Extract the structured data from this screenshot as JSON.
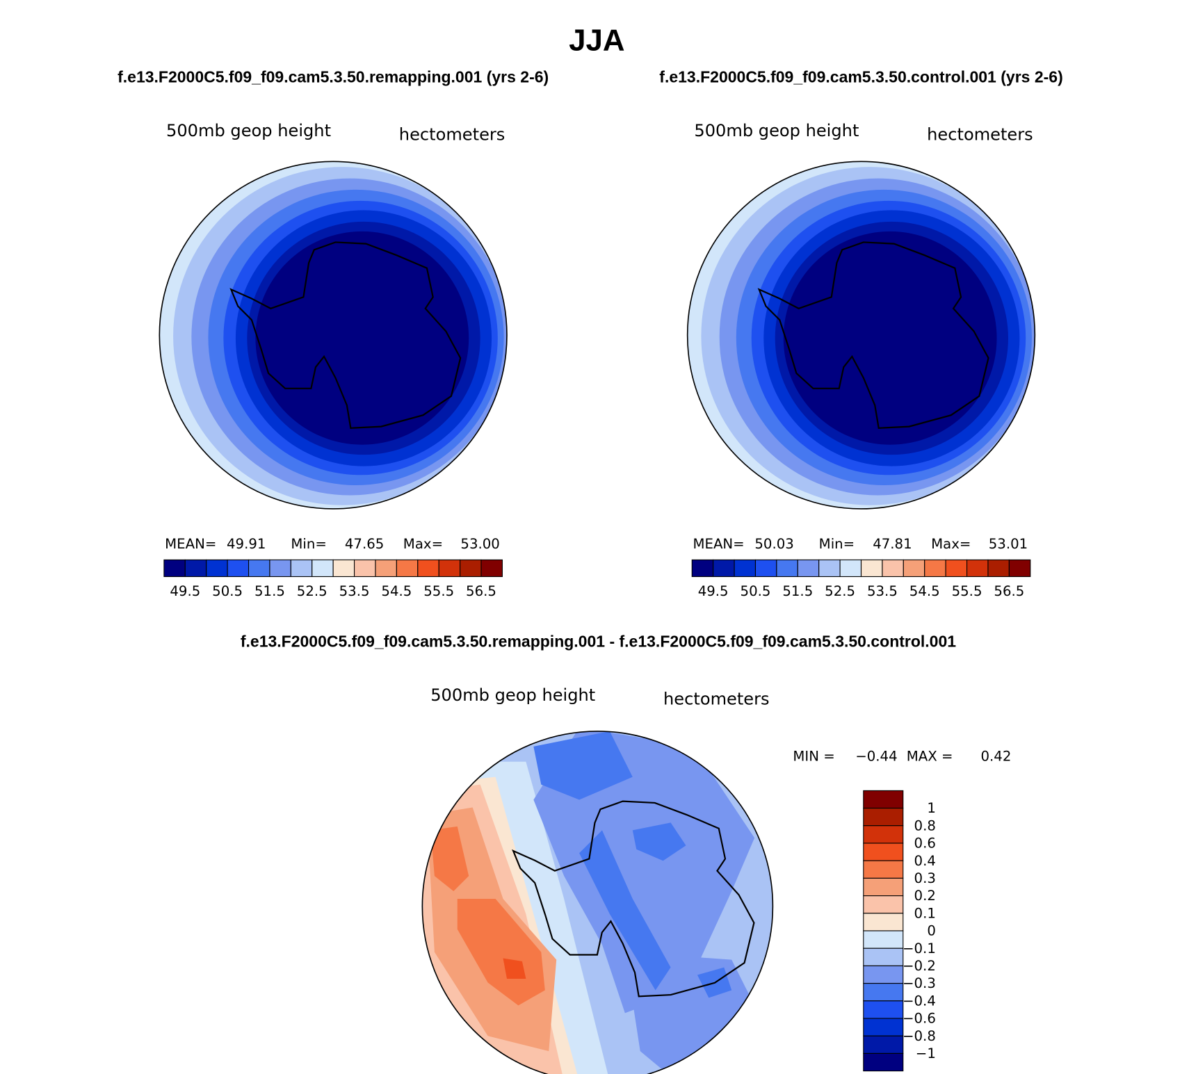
{
  "title": "JJA",
  "panels": [
    {
      "subtitle": "f.e13.F2000C5.f09_f09.cam5.3.50.remapping.001 (yrs 2-6)",
      "variable": "500mb geop height",
      "units": "hectometers",
      "stats": [
        "MEAN=",
        "49.91",
        "Min=",
        "47.65",
        "Max=",
        "53.00"
      ],
      "colorbar": {
        "labels": [
          "49.5",
          "50.5",
          "51.5",
          "52.5",
          "53.5",
          "54.5",
          "55.5",
          "56.5"
        ],
        "colors": [
          "#000080",
          "#0019a8",
          "#0032d2",
          "#1e50f0",
          "#4678f0",
          "#7896f0",
          "#aac3f5",
          "#d2e6fa",
          "#fae6d2",
          "#fac3aa",
          "#f5a078",
          "#f57846",
          "#f0501e",
          "#d2320a",
          "#aa1e00",
          "#800000"
        ]
      }
    },
    {
      "subtitle": "f.e13.F2000C5.f09_f09.cam5.3.50.control.001 (yrs 2-6)",
      "variable": "500mb geop height",
      "units": "hectometers",
      "stats": [
        "MEAN=",
        "50.03",
        "Min=",
        "47.81",
        "Max=",
        "53.01"
      ],
      "colorbar": {
        "labels": [
          "49.5",
          "50.5",
          "51.5",
          "52.5",
          "53.5",
          "54.5",
          "55.5",
          "56.5"
        ],
        "colors": [
          "#000080",
          "#0019a8",
          "#0032d2",
          "#1e50f0",
          "#4678f0",
          "#7896f0",
          "#aac3f5",
          "#d2e6fa",
          "#fae6d2",
          "#fac3aa",
          "#f5a078",
          "#f57846",
          "#f0501e",
          "#d2320a",
          "#aa1e00",
          "#800000"
        ]
      }
    }
  ],
  "difference": {
    "title": "f.e13.F2000C5.f09_f09.cam5.3.50.remapping.001 - f.e13.F2000C5.f09_f09.cam5.3.50.control.001",
    "variable": "500mb geop height",
    "units": "hectometers",
    "stats": [
      "MIN =",
      "−0.44",
      "MAX =",
      "0.42"
    ],
    "colorbar": {
      "labels": [
        "1",
        "0.8",
        "0.6",
        "0.4",
        "0.3",
        "0.2",
        "0.1",
        "0",
        "−0.1",
        "−0.2",
        "−0.3",
        "−0.4",
        "−0.6",
        "−0.8",
        "−1"
      ],
      "colors": [
        "#800000",
        "#aa1e00",
        "#d2320a",
        "#f0501e",
        "#f57846",
        "#f5a078",
        "#fac3aa",
        "#fae6d2",
        "#d2e6fa",
        "#aac3f5",
        "#7896f0",
        "#4678f0",
        "#1e50f0",
        "#0032d2",
        "#0019a8",
        "#000080"
      ]
    }
  }
}
